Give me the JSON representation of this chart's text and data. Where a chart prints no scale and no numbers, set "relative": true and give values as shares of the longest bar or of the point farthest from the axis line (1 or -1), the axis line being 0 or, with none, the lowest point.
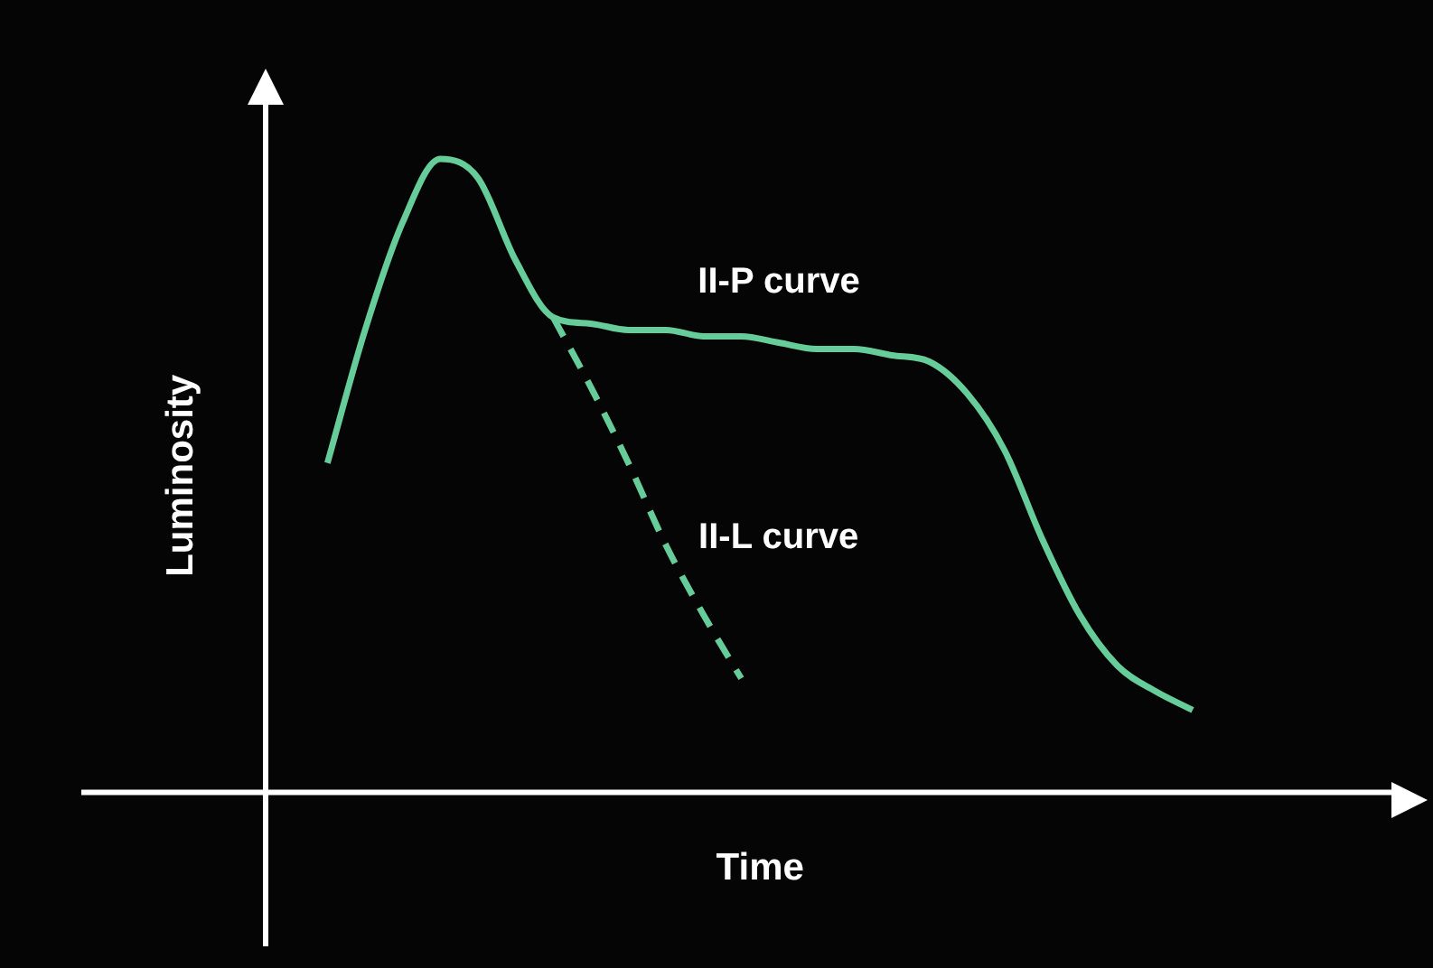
{
  "chart_data": {
    "type": "line",
    "relative": true,
    "xlabel": "Time",
    "ylabel": "Luminosity",
    "marker": "none",
    "categories": [
      null,
      null,
      null,
      null,
      null,
      null,
      null,
      null,
      null,
      null,
      null,
      null,
      null,
      null,
      null,
      null,
      null,
      null,
      null,
      null,
      null,
      null,
      null,
      null
    ],
    "series": [
      {
        "name": "II-P curve",
        "color": "#66cc99",
        "line_style": "solid",
        "values": [
          0.52,
          0.73,
          0.9,
          1,
          0.97,
          0.84,
          0.75,
          0.74,
          0.73,
          0.73,
          0.72,
          0.72,
          0.71,
          0.7,
          0.7,
          0.69,
          0.68,
          0.63,
          0.54,
          0.4,
          0.28,
          0.2,
          0.16,
          0.13
        ]
      },
      {
        "name": "II-L curve",
        "color": "#66cc99",
        "line_style": "dashed",
        "values": [
          null,
          null,
          null,
          null,
          null,
          null,
          0.75,
          0.64,
          0.52,
          0.39,
          0.28,
          0.18,
          null,
          null,
          null,
          null,
          null,
          null,
          null,
          null,
          null,
          null,
          null,
          null
        ]
      }
    ]
  }
}
